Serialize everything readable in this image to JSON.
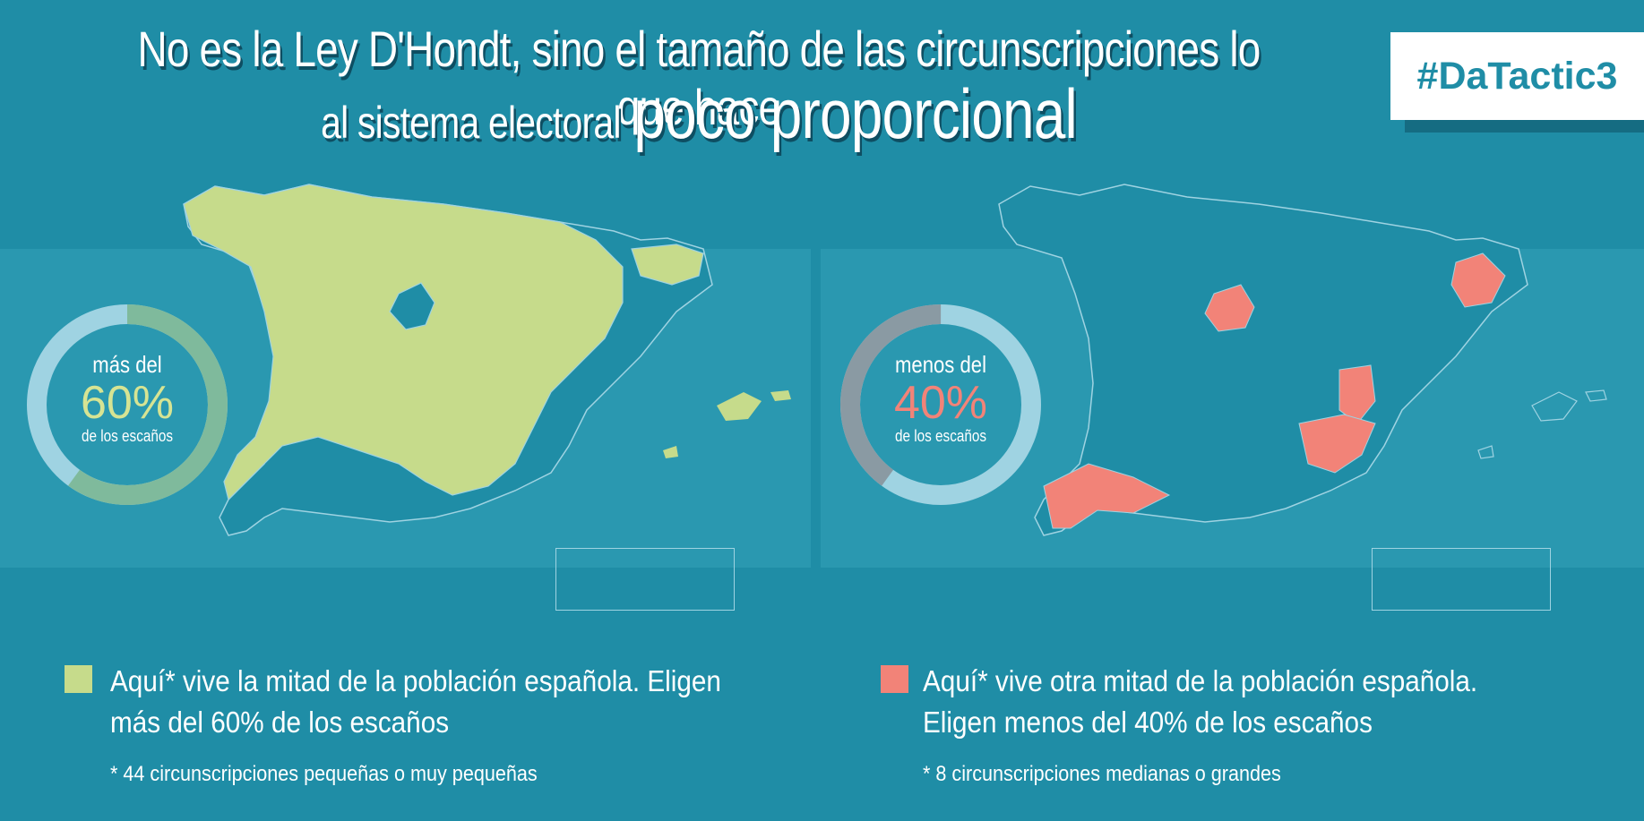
{
  "title": {
    "line1": "No es la Ley D'Hondt, sino el tamaño de las circunscripciones lo que hace",
    "line2_prefix": "al sistema electoral",
    "line2_emphasis": "poco proporcional"
  },
  "hashtag": "#DaTactic3",
  "colors": {
    "background": "#1f8da6",
    "small_districts": "#c6db8b",
    "large_districts": "#f28378",
    "outline": "#9fd3e2"
  },
  "left_panel": {
    "donut": {
      "lead": "más del",
      "percent": "60%",
      "sub": "de los escaños",
      "share": 0.6
    },
    "legend": "Aquí* vive la mitad de la población española. Eligen más del 60% de los escaños",
    "note": "* 44 circunscripciones pequeñas o muy pequeñas"
  },
  "right_panel": {
    "donut": {
      "lead": "menos del",
      "percent": "40%",
      "sub": "de los escaños",
      "share": 0.4
    },
    "legend": "Aquí* vive otra mitad de la población española. Eligen menos del 40% de los escaños",
    "note": "* 8 circunscripciones medianas o grandes"
  }
}
